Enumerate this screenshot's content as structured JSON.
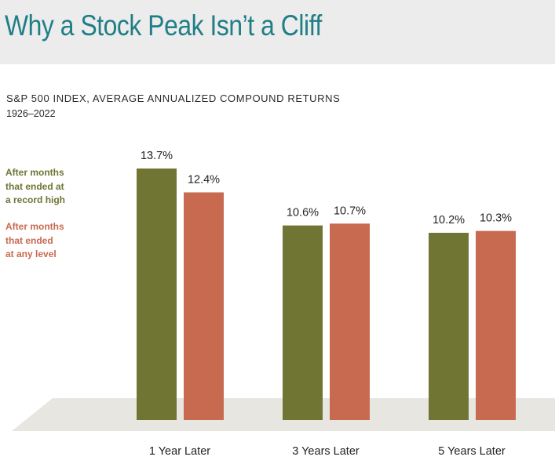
{
  "title": "Why a Stock Peak Isn’t a Cliff",
  "subtitle": "S&P 500 INDEX, AVERAGE ANNUALIZED COMPOUND RETURNS",
  "period": "1926–2022",
  "colors": {
    "title": "#1f7e86",
    "record_high": "#707534",
    "any_level": "#c76a50",
    "floor": "#e8e6e1"
  },
  "chart_data": {
    "type": "bar",
    "title": "S&P 500 INDEX, AVERAGE ANNUALIZED COMPOUND RETURNS",
    "subtitle": "1926–2022",
    "categories": [
      "1 Year Later",
      "3 Years Later",
      "5 Years Later"
    ],
    "series": [
      {
        "name": "After months\nthat ended at\na record high",
        "values": [
          13.7,
          10.6,
          10.2
        ],
        "labels": [
          "13.7%",
          "10.6%",
          "10.2%"
        ],
        "color": "#707534"
      },
      {
        "name": "After months\nthat ended\nat any level",
        "values": [
          12.4,
          10.7,
          10.3
        ],
        "labels": [
          "12.4%",
          "10.7%",
          "10.3%"
        ],
        "color": "#c76a50"
      }
    ],
    "ylim": [
      0,
      13.7
    ],
    "grid": false,
    "legend": "left"
  }
}
